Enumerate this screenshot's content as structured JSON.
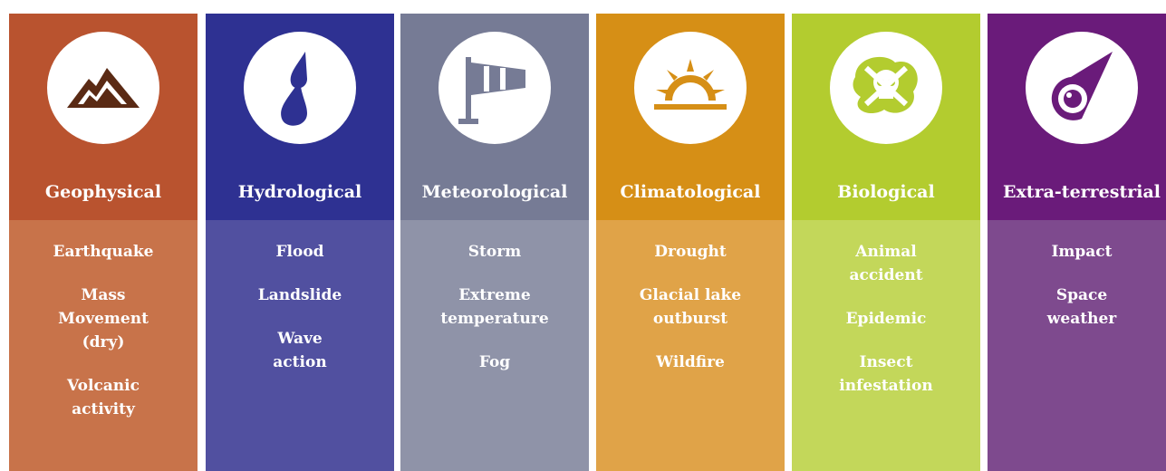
{
  "columns": [
    {
      "title": "Geophysical",
      "items": [
        [
          "Earthquake"
        ],
        [
          "Mass",
          "Movement",
          "(dry)"
        ],
        [
          "Volcanic",
          "activity"
        ]
      ]
    },
    {
      "title": "Hydrological",
      "items": [
        [
          "Flood"
        ],
        [
          "Landslide"
        ],
        [
          "Wave",
          "action"
        ]
      ]
    },
    {
      "title": "Meteorological",
      "items": [
        [
          "Storm"
        ],
        [
          "Extreme",
          "temperature"
        ],
        [
          "Fog"
        ]
      ]
    },
    {
      "title": "Climatological",
      "items": [
        [
          "Drought"
        ],
        [
          "Glacial lake",
          "outburst"
        ],
        [
          "Wildfire"
        ]
      ]
    },
    {
      "title": "Biological",
      "items": [
        [
          "Animal",
          "accident"
        ],
        [
          "Epidemic"
        ],
        [
          "Insect",
          "infestation"
        ]
      ]
    },
    {
      "title": "Extra-terrestrial",
      "items": [
        [
          "Impact"
        ],
        [
          "Space",
          "weather"
        ]
      ]
    }
  ]
}
